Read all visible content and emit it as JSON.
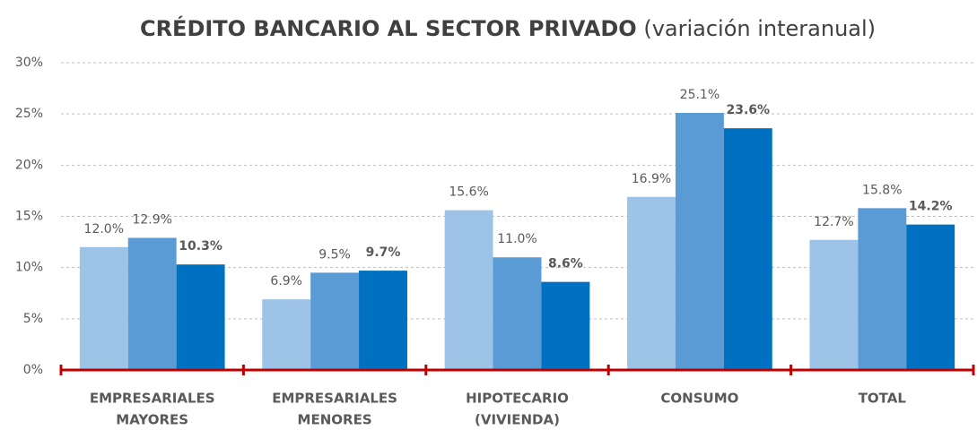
{
  "chart_data": {
    "type": "bar",
    "title": "CRÉDITO BANCARIO AL SECTOR PRIVADO",
    "subtitle": "(variación interanual)",
    "categories": [
      [
        "EMPRESARIALES",
        "MAYORES"
      ],
      [
        "EMPRESARIALES",
        "MENORES"
      ],
      [
        "HIPOTECARIO",
        "(VIVIENDA)"
      ],
      [
        "CONSUMO"
      ],
      [
        "TOTAL"
      ]
    ],
    "series": [
      {
        "color": "#9dc3e6",
        "values": [
          12.0,
          6.9,
          15.6,
          16.9,
          12.7
        ],
        "value_labels": [
          "12.0%",
          "6.9%",
          "15.6%",
          "16.9%",
          "12.7%"
        ]
      },
      {
        "color": "#5b9bd5",
        "values": [
          12.9,
          9.5,
          11.0,
          25.1,
          15.8
        ],
        "value_labels": [
          "12.9%",
          "9.5%",
          "11.0%",
          "25.1%",
          "15.8%"
        ]
      },
      {
        "color": "#0070c0",
        "values": [
          10.3,
          9.7,
          8.6,
          23.6,
          14.2
        ],
        "value_labels": [
          "10.3%",
          "9.7%",
          "8.6%",
          "23.6%",
          "14.2%"
        ]
      }
    ],
    "ylim": [
      0,
      30
    ],
    "yticks": [
      {
        "value": 0,
        "label": "0%"
      },
      {
        "value": 5,
        "label": "5%"
      },
      {
        "value": 10,
        "label": "10%"
      },
      {
        "value": 15,
        "label": "15%"
      },
      {
        "value": 20,
        "label": "20%"
      },
      {
        "value": 25,
        "label": "25%"
      },
      {
        "value": 30,
        "label": "30%"
      }
    ],
    "grid": true
  }
}
